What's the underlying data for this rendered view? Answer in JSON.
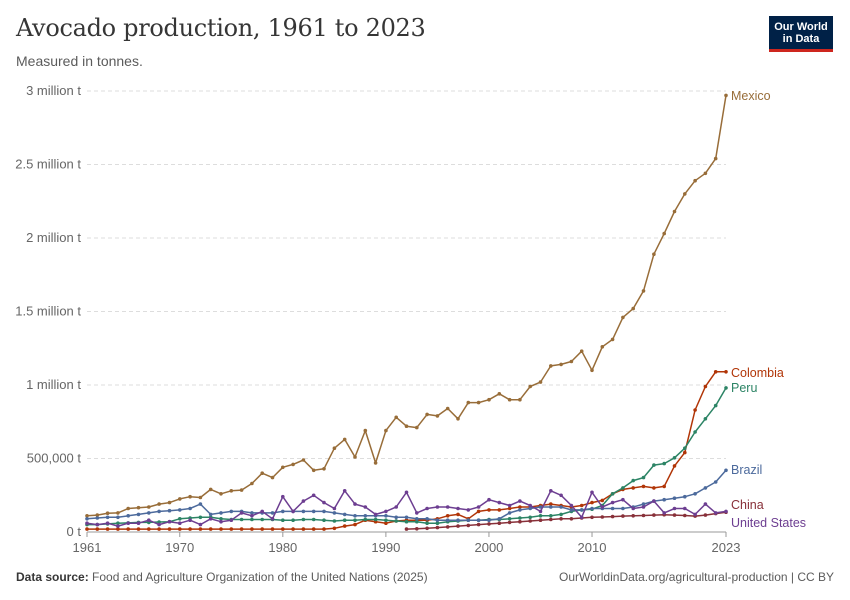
{
  "title": "Avocado production, 1961 to 2023",
  "subtitle": "Measured in tonnes.",
  "logo": {
    "line1": "Our World",
    "line2": "in Data"
  },
  "footer": {
    "source_label": "Data source:",
    "source_text": "Food and Agriculture Organization of the United Nations (2025)",
    "url_license": "OurWorldinData.org/agricultural-production | CC BY"
  },
  "chart_data": {
    "type": "line",
    "title": "Avocado production, 1961 to 2023",
    "subtitle": "Measured in tonnes.",
    "ylim": [
      0,
      3000000
    ],
    "xlim": [
      1961,
      2023
    ],
    "y_ticks": [
      {
        "value": 0,
        "label": "0 t"
      },
      {
        "value": 500000,
        "label": "500,000 t"
      },
      {
        "value": 1000000,
        "label": "1 million t"
      },
      {
        "value": 1500000,
        "label": "1.5 million t"
      },
      {
        "value": 2000000,
        "label": "2 million t"
      },
      {
        "value": 2500000,
        "label": "2.5 million t"
      },
      {
        "value": 3000000,
        "label": "3 million t"
      }
    ],
    "x_ticks": [
      {
        "value": 1961,
        "label": "1961"
      },
      {
        "value": 1970,
        "label": "1970"
      },
      {
        "value": 1980,
        "label": "1980"
      },
      {
        "value": 1990,
        "label": "1990"
      },
      {
        "value": 2000,
        "label": "2000"
      },
      {
        "value": 2010,
        "label": "2010"
      },
      {
        "value": 2023,
        "label": "2023"
      }
    ],
    "grid": "horizontal dashed",
    "legend": "labels at line ends (right)",
    "series": [
      {
        "name": "Mexico",
        "color": "#986d39",
        "start_year": 1961,
        "values": [
          110000,
          115000,
          128000,
          130000,
          160000,
          165000,
          170000,
          190000,
          200000,
          225000,
          240000,
          235000,
          290000,
          260000,
          280000,
          285000,
          330000,
          400000,
          370000,
          440000,
          460000,
          490000,
          420000,
          430000,
          570000,
          630000,
          510000,
          690000,
          470000,
          690000,
          780000,
          720000,
          710000,
          800000,
          790000,
          840000,
          770000,
          880000,
          880000,
          900000,
          940000,
          900000,
          900000,
          990000,
          1020000,
          1130000,
          1140000,
          1160000,
          1230000,
          1100000,
          1260000,
          1310000,
          1460000,
          1520000,
          1640000,
          1890000,
          2030000,
          2180000,
          2300000,
          2390000,
          2440000,
          2540000,
          2970000
        ]
      },
      {
        "name": "Colombia",
        "color": "#b13507",
        "start_year": 1961,
        "values": [
          20000,
          20000,
          20000,
          20000,
          20000,
          20000,
          20000,
          20000,
          20000,
          20000,
          20000,
          20000,
          20000,
          20000,
          20000,
          20000,
          20000,
          20000,
          20000,
          20000,
          20000,
          20000,
          20000,
          20000,
          25000,
          40000,
          50000,
          80000,
          70000,
          60000,
          75000,
          80000,
          80000,
          80000,
          90000,
          110000,
          120000,
          90000,
          140000,
          150000,
          150000,
          160000,
          170000,
          170000,
          180000,
          190000,
          180000,
          170000,
          180000,
          200000,
          215000,
          260000,
          290000,
          300000,
          310000,
          300000,
          310000,
          450000,
          540000,
          830000,
          990000,
          1090000,
          1090000
        ]
      },
      {
        "name": "Peru",
        "color": "#2c8465",
        "start_year": 1961,
        "values": [
          50000,
          50000,
          55000,
          60000,
          62000,
          65000,
          65000,
          68000,
          70000,
          90000,
          95000,
          100000,
          100000,
          90000,
          85000,
          85000,
          85000,
          85000,
          85000,
          80000,
          80000,
          85000,
          85000,
          80000,
          75000,
          80000,
          80000,
          85000,
          85000,
          80000,
          75000,
          70000,
          70000,
          60000,
          60000,
          70000,
          75000,
          80000,
          80000,
          85000,
          85000,
          90000,
          95000,
          100000,
          110000,
          110000,
          120000,
          140000,
          150000,
          155000,
          180000,
          260000,
          300000,
          350000,
          370000,
          455000,
          465000,
          505000,
          570000,
          680000,
          770000,
          860000,
          980000
        ]
      },
      {
        "name": "Brazil",
        "color": "#4c6a9c",
        "start_year": 1961,
        "values": [
          90000,
          95000,
          100000,
          100000,
          110000,
          120000,
          130000,
          140000,
          145000,
          150000,
          160000,
          190000,
          120000,
          130000,
          140000,
          140000,
          130000,
          130000,
          130000,
          140000,
          140000,
          140000,
          140000,
          140000,
          130000,
          120000,
          110000,
          110000,
          110000,
          110000,
          100000,
          100000,
          90000,
          90000,
          80000,
          80000,
          80000,
          80000,
          80000,
          80000,
          90000,
          130000,
          150000,
          160000,
          170000,
          170000,
          170000,
          150000,
          150000,
          160000,
          160000,
          160000,
          160000,
          170000,
          190000,
          210000,
          220000,
          230000,
          240000,
          260000,
          300000,
          340000,
          420000
        ]
      },
      {
        "name": "China",
        "color": "#883039",
        "start_year": 1992,
        "values": [
          20000,
          22000,
          25000,
          30000,
          35000,
          40000,
          45000,
          50000,
          55000,
          60000,
          65000,
          70000,
          75000,
          80000,
          85000,
          90000,
          90000,
          95000,
          100000,
          102000,
          105000,
          108000,
          110000,
          112000,
          115000,
          118000,
          115000,
          112000,
          108000,
          115000,
          125000,
          135000
        ]
      },
      {
        "name": "United States",
        "color": "#6d3e91",
        "start_year": 1961,
        "values": [
          60000,
          50000,
          60000,
          40000,
          60000,
          60000,
          80000,
          50000,
          70000,
          60000,
          80000,
          50000,
          90000,
          70000,
          80000,
          130000,
          110000,
          140000,
          90000,
          240000,
          140000,
          210000,
          250000,
          200000,
          160000,
          280000,
          190000,
          170000,
          120000,
          140000,
          170000,
          270000,
          130000,
          160000,
          170000,
          170000,
          160000,
          150000,
          170000,
          220000,
          200000,
          180000,
          210000,
          180000,
          140000,
          280000,
          250000,
          180000,
          100000,
          270000,
          170000,
          200000,
          220000,
          160000,
          170000,
          210000,
          130000,
          160000,
          160000,
          120000,
          190000,
          130000,
          140000
        ]
      }
    ]
  }
}
